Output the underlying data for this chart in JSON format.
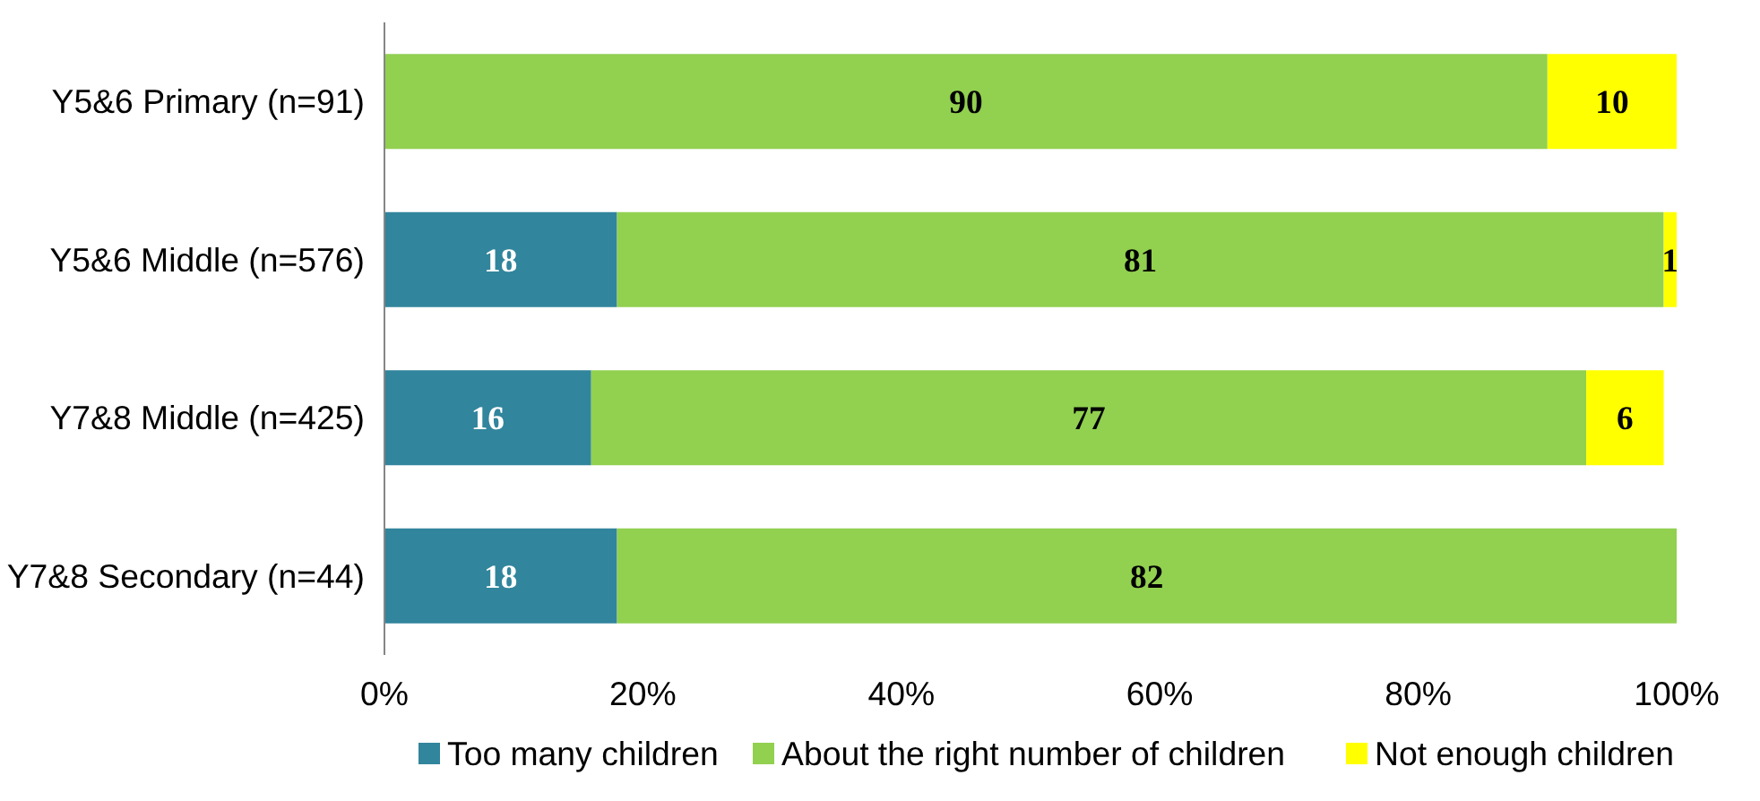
{
  "chart_data": {
    "type": "bar",
    "orientation": "horizontal",
    "stacked": true,
    "categories": [
      "Y5&6 Primary (n=91)",
      "Y5&6 Middle (n=576)",
      "Y7&8 Middle (n=425)",
      "Y7&8 Secondary (n=44)"
    ],
    "series": [
      {
        "name": "Too many children",
        "color": "#31859c",
        "values": [
          null,
          18,
          16,
          18
        ]
      },
      {
        "name": "About the right number of children",
        "color": "#92d050",
        "values": [
          90,
          81,
          77,
          82
        ]
      },
      {
        "name": "Not enough children",
        "color": "#ffff00",
        "values": [
          10,
          1,
          6,
          null
        ]
      }
    ],
    "xlim": [
      0,
      100
    ],
    "xticks": [
      {
        "value": 0,
        "label": "0%"
      },
      {
        "value": 20,
        "label": "20%"
      },
      {
        "value": 40,
        "label": "40%"
      },
      {
        "value": 60,
        "label": "60%"
      },
      {
        "value": 80,
        "label": "80%"
      },
      {
        "value": 100,
        "label": "100%"
      }
    ],
    "data_labels": true,
    "grid": false,
    "legend": "bottom"
  }
}
